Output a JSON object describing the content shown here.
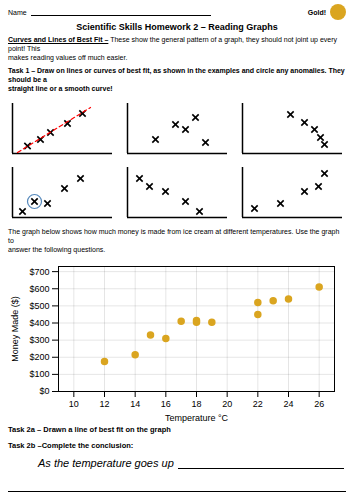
{
  "chart_data": [
    {
      "type": "scatter",
      "title": "Scientific Skills Homework 2 – Reading Graphs",
      "annotations": [
        "Name",
        "Gold!",
        "Curves and Lines of Best Fit –",
        " These show the general pattern of a graph, they should not joint up every point! This",
        "makes reading values off much easier.",
        "Task 1 – Draw on lines or curves of best fit, as shown in the examples and circle any anomalies. They should be a",
        "straight line or a smooth curve!",
        "The graph below shows how much money is made from ice cream at different temperatures. Use the graph to",
        "answer the following questions.",
        "Task 2a – Drawn a line of best fit on the graph",
        "Task 2b –Complete the conclusion:",
        "As the temperature goes up"
      ],
      "x": [
        12,
        14,
        15,
        16,
        17,
        18,
        18,
        19,
        22,
        22,
        23,
        24,
        26
      ],
      "values": [
        175,
        215,
        330,
        310,
        410,
        415,
        405,
        405,
        520,
        450,
        530,
        540,
        610
      ],
      "color": "#DAA520",
      "xlabel": "Temperature °C",
      "ylabel": "Money Made ($)",
      "xlim": [
        9,
        27
      ],
      "ylim": [
        0,
        730
      ],
      "xticks": [
        10,
        12,
        14,
        16,
        18,
        20,
        22,
        24,
        26
      ],
      "yticks": [
        {
          "value": 0,
          "label": "$0"
        },
        {
          "value": 100,
          "label": "$100"
        },
        {
          "value": 200,
          "label": "$200"
        },
        {
          "value": 300,
          "label": "$300"
        },
        {
          "value": 400,
          "label": "$400"
        },
        {
          "value": 500,
          "label": "$500"
        },
        {
          "value": 600,
          "label": "$600"
        },
        {
          "value": 700,
          "label": "$700"
        }
      ],
      "grid": true
    },
    {
      "type": "scatter",
      "marker": "x",
      "x": [
        0.15,
        0.28,
        0.38,
        0.55,
        0.7
      ],
      "values": [
        0.15,
        0.28,
        0.42,
        0.6,
        0.8
      ],
      "xlim": [
        0,
        1
      ],
      "ylim": [
        0,
        1
      ],
      "tick_labels": false,
      "best_fit": {
        "x": [
          0.05,
          0.78
        ],
        "values": [
          0.02,
          0.92
        ],
        "color": "red",
        "line_style": "dashed"
      }
    },
    {
      "type": "scatter",
      "marker": "x",
      "x": [
        0.28,
        0.48,
        0.58,
        0.68,
        0.78
      ],
      "values": [
        0.28,
        0.58,
        0.48,
        0.72,
        0.22
      ],
      "xlim": [
        0,
        1
      ],
      "ylim": [
        0,
        1
      ],
      "tick_labels": false
    },
    {
      "type": "scatter",
      "marker": "x",
      "x": [
        0.48,
        0.62,
        0.72,
        0.78,
        0.82
      ],
      "values": [
        0.78,
        0.62,
        0.48,
        0.32,
        0.18
      ],
      "xlim": [
        0,
        1
      ],
      "ylim": [
        0,
        1
      ],
      "tick_labels": false
    },
    {
      "type": "scatter",
      "marker": "x",
      "x": [
        0.1,
        0.22,
        0.35,
        0.52,
        0.68
      ],
      "values": [
        0.12,
        0.32,
        0.28,
        0.58,
        0.78
      ],
      "xlim": [
        0,
        1
      ],
      "ylim": [
        0,
        1
      ],
      "tick_labels": false,
      "anomaly": {
        "x": 0.22,
        "value": 0.32,
        "color": "#5588bb"
      }
    },
    {
      "type": "scatter",
      "marker": "x",
      "x": [
        0.12,
        0.22,
        0.38,
        0.58,
        0.72
      ],
      "values": [
        0.78,
        0.62,
        0.52,
        0.32,
        0.12
      ],
      "xlim": [
        0,
        1
      ],
      "ylim": [
        0,
        1
      ],
      "tick_labels": false
    },
    {
      "type": "scatter",
      "marker": "x",
      "x": [
        0.12,
        0.38,
        0.62,
        0.76,
        0.82
      ],
      "values": [
        0.18,
        0.28,
        0.52,
        0.62,
        0.88
      ],
      "xlim": [
        0,
        1
      ],
      "ylim": [
        0,
        1
      ],
      "tick_labels": false
    }
  ]
}
